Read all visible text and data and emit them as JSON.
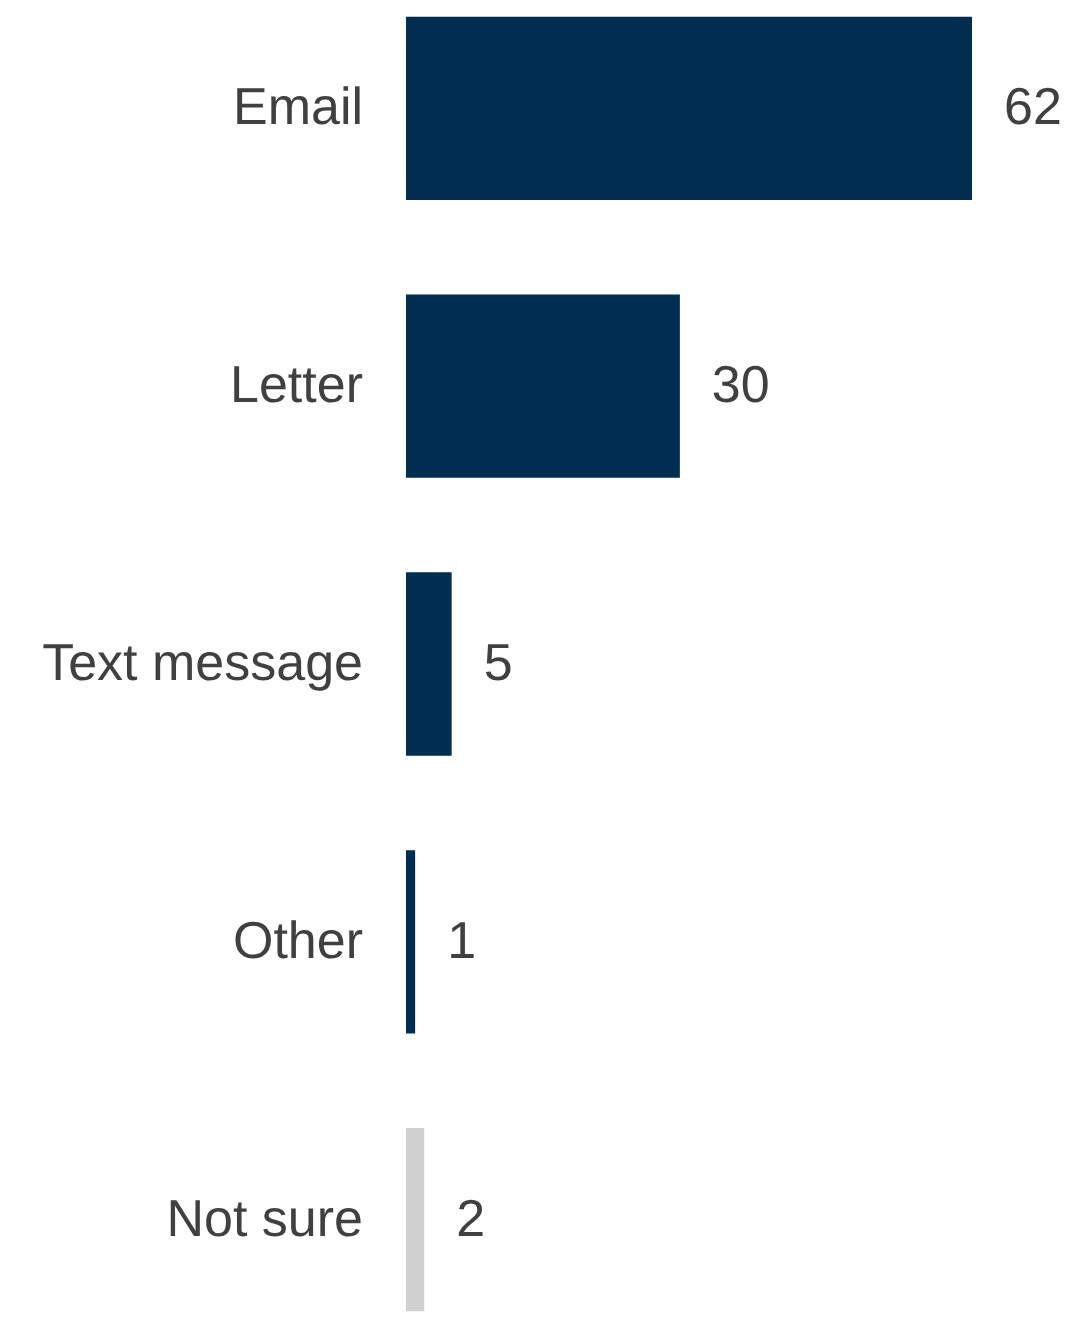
{
  "chart_data": {
    "type": "bar",
    "orientation": "horizontal",
    "categories": [
      "Email",
      "Letter",
      "Text message",
      "Other",
      "Not sure"
    ],
    "values": [
      62,
      30,
      5,
      1,
      2
    ],
    "colors": [
      "#002d50",
      "#002d50",
      "#002d50",
      "#002d50",
      "#d0d0d0"
    ],
    "data_labels": true,
    "tick_labels": "y"
  }
}
